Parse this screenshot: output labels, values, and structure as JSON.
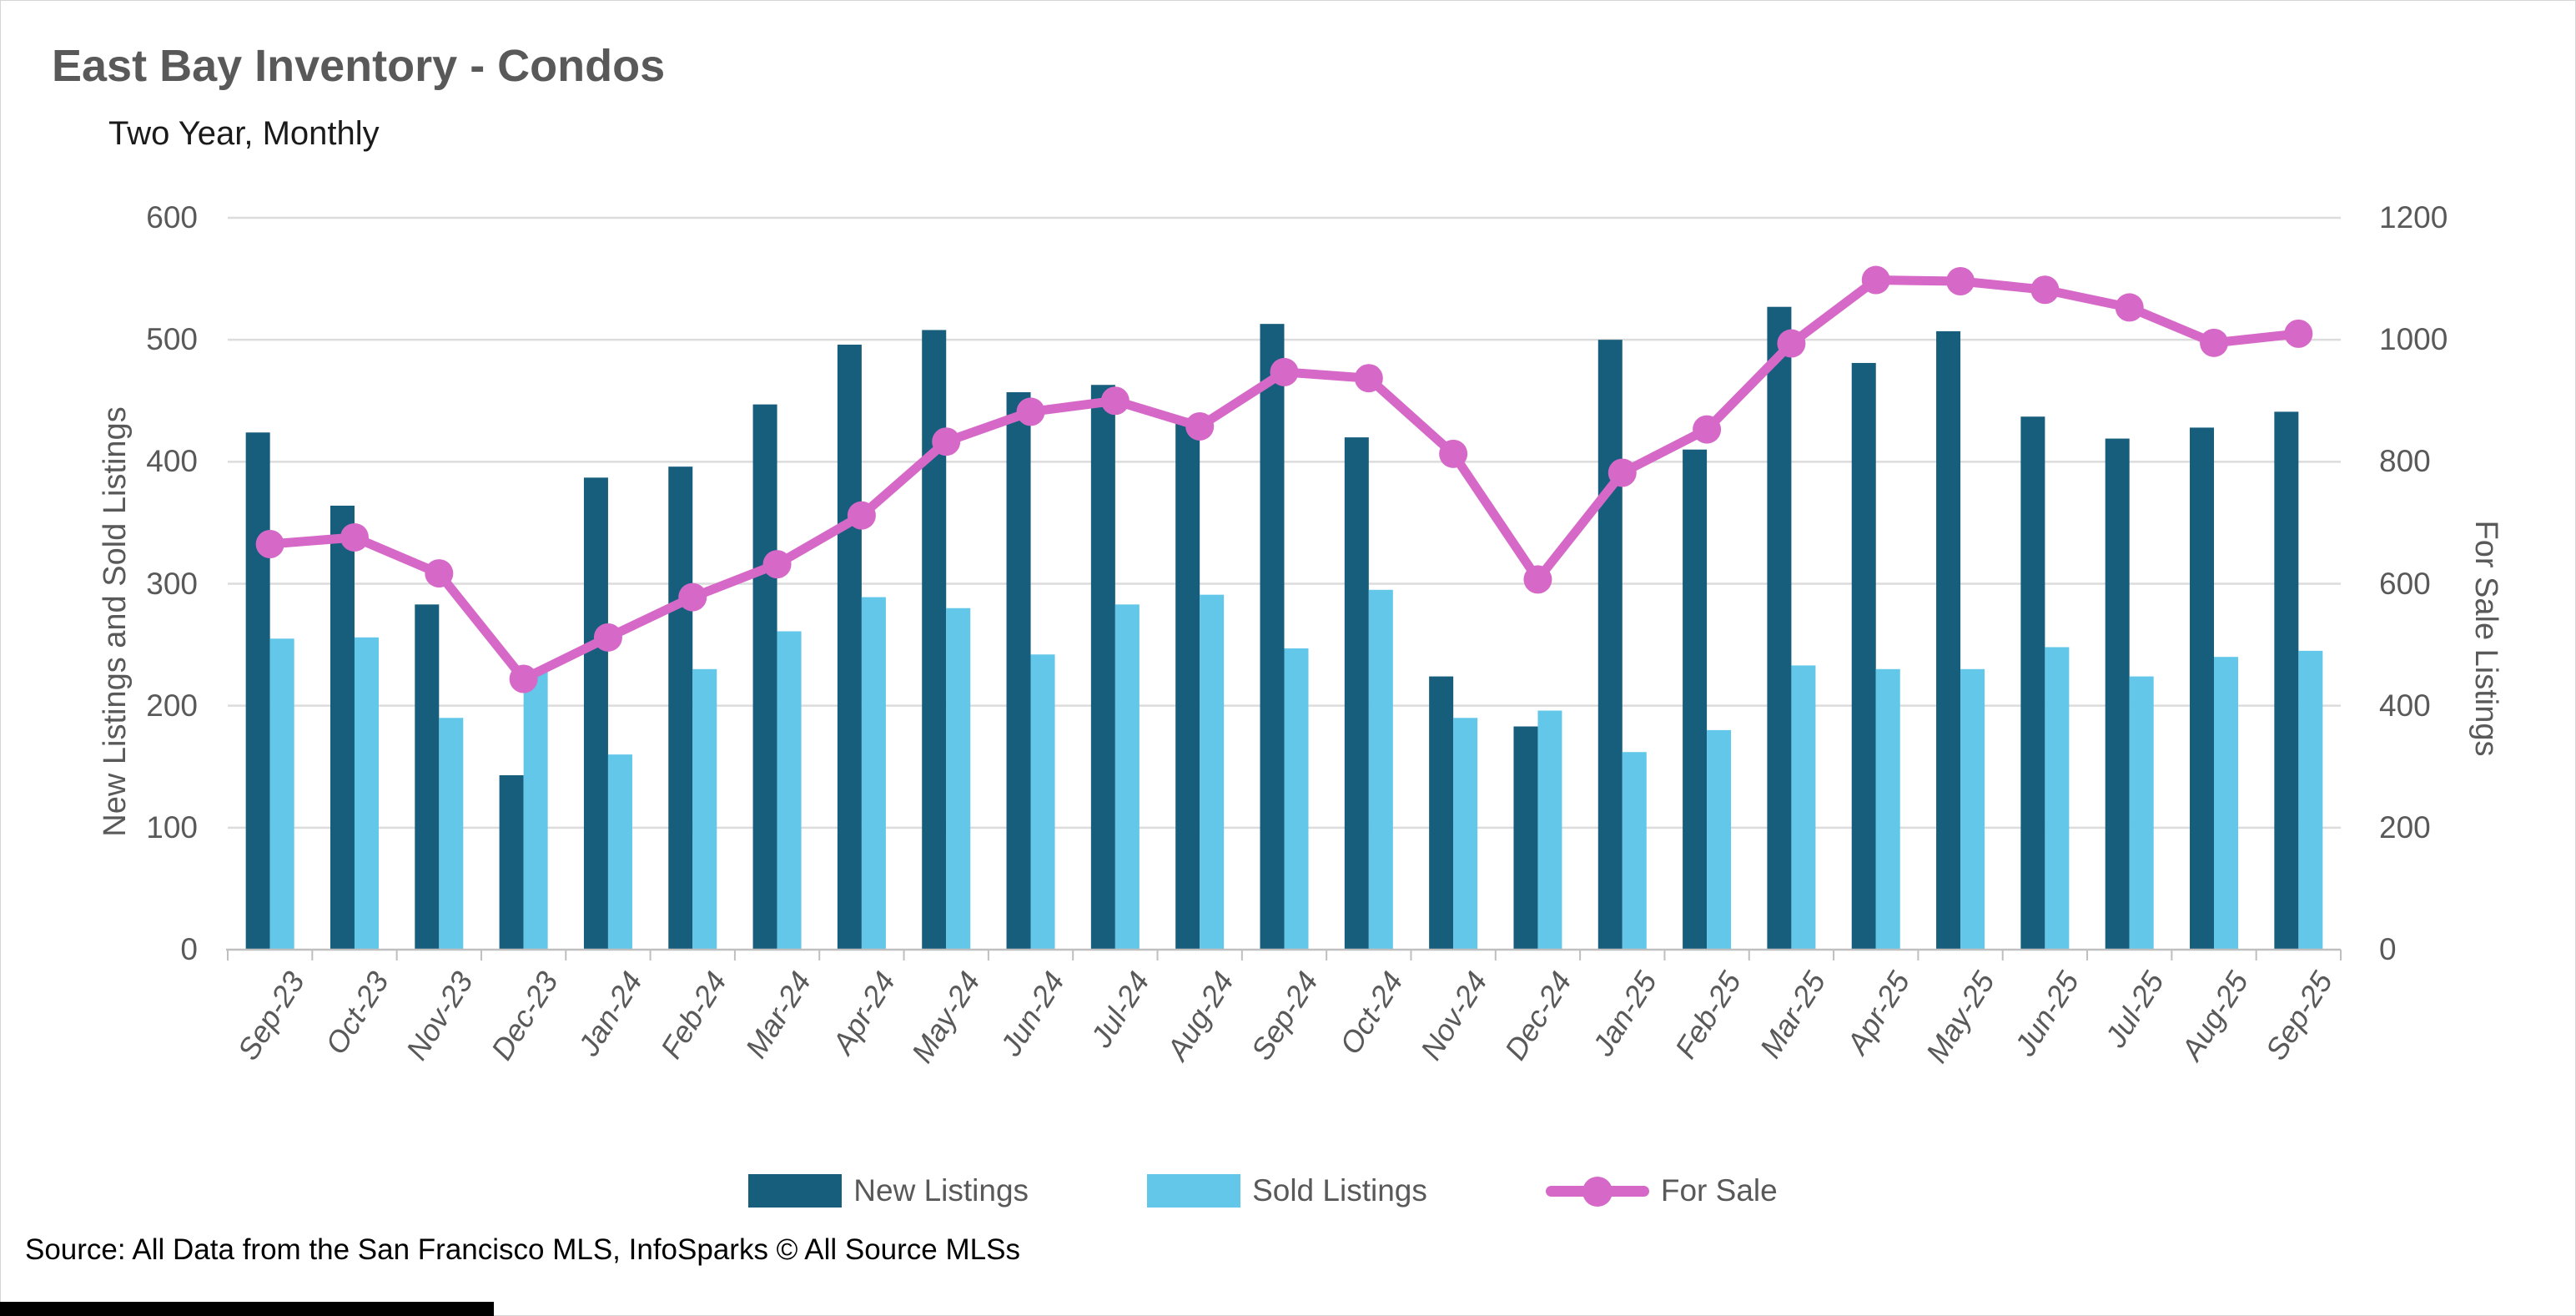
{
  "chart_data": {
    "type": "combo-bar-line",
    "title": "East Bay Inventory - Condos",
    "subtitle": "Two Year, Monthly",
    "source": "Source: All Data from the San Francisco MLS, InfoSparks © All Source MLSs",
    "categories": [
      "Sep-23",
      "Oct-23",
      "Nov-23",
      "Dec-23",
      "Jan-24",
      "Feb-24",
      "Mar-24",
      "Apr-24",
      "May-24",
      "Jun-24",
      "Jul-24",
      "Aug-24",
      "Sep-24",
      "Oct-24",
      "Nov-24",
      "Dec-24",
      "Jan-25",
      "Feb-25",
      "Mar-25",
      "Apr-25",
      "May-25",
      "Jun-25",
      "Jul-25",
      "Aug-25",
      "Sep-25"
    ],
    "series": [
      {
        "name": "New Listings",
        "type": "bar",
        "axis": "left",
        "color": "#175e7d",
        "values": [
          424,
          364,
          283,
          143,
          387,
          396,
          447,
          496,
          508,
          457,
          463,
          436,
          513,
          420,
          224,
          183,
          500,
          410,
          527,
          481,
          507,
          437,
          419,
          428,
          441
        ]
      },
      {
        "name": "Sold Listings",
        "type": "bar",
        "axis": "left",
        "color": "#62c7e9",
        "values": [
          255,
          256,
          190,
          230,
          160,
          230,
          261,
          289,
          280,
          242,
          283,
          291,
          247,
          295,
          190,
          196,
          162,
          180,
          233,
          230,
          230,
          248,
          224,
          240,
          245
        ]
      },
      {
        "name": "For Sale",
        "type": "line",
        "axis": "right",
        "color": "#d669c8",
        "values": [
          665,
          676,
          617,
          444,
          512,
          578,
          632,
          712,
          833,
          882,
          900,
          858,
          947,
          937,
          813,
          607,
          782,
          853,
          994,
          1098,
          1096,
          1082,
          1053,
          995,
          1010
        ]
      }
    ],
    "left_axis": {
      "label": "New Listings and Sold Listings",
      "min": 0,
      "max": 600,
      "ticks": [
        0,
        100,
        200,
        300,
        400,
        500,
        600
      ]
    },
    "right_axis": {
      "label": "For Sale Listings",
      "min": 0,
      "max": 1200,
      "ticks": [
        0,
        200,
        400,
        600,
        800,
        1000,
        1200
      ]
    },
    "grid": "horizontal",
    "legend_position": "bottom"
  }
}
